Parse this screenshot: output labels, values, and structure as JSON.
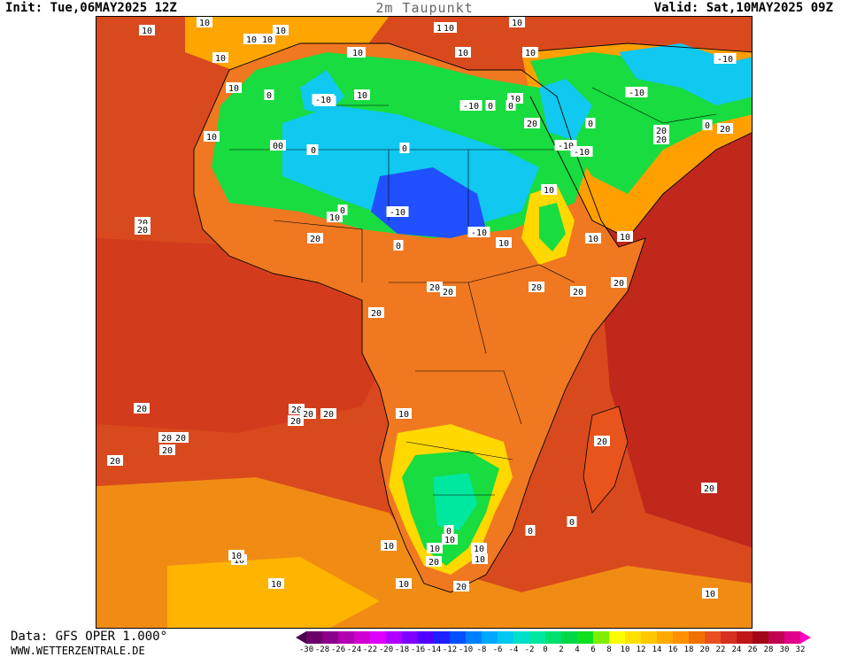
{
  "header": {
    "init": "Init: Tue,06MAY2025 12Z",
    "title": "2m Taupunkt",
    "valid": "Valid: Sat,10MAY2025 09Z"
  },
  "footer": {
    "data_source": "Data: GFS OPER 1.000°",
    "website": "WWW.WETTERZENTRALE.DE"
  },
  "legend": {
    "ticks": [
      "-30",
      "-28",
      "-26",
      "-24",
      "-22",
      "-20",
      "-18",
      "-16",
      "-14",
      "-12",
      "-10",
      "-8",
      "-6",
      "-4",
      "-2",
      "0",
      "2",
      "4",
      "6",
      "8",
      "10",
      "12",
      "14",
      "16",
      "18",
      "20",
      "22",
      "24",
      "26",
      "28",
      "30",
      "32"
    ],
    "colors": [
      "#4a004a",
      "#6b006b",
      "#8b008b",
      "#b000b0",
      "#d000d0",
      "#e000ff",
      "#b000ff",
      "#8000ff",
      "#5000ff",
      "#2020ff",
      "#0050ff",
      "#0080ff",
      "#00a8ff",
      "#00c8f0",
      "#00e0c8",
      "#00e8a0",
      "#00e070",
      "#00d848",
      "#10e020",
      "#80ee00",
      "#ffff00",
      "#ffe000",
      "#ffc800",
      "#ffaa00",
      "#ff9000",
      "#f07000",
      "#e85020",
      "#d83020",
      "#c01818",
      "#a00818",
      "#c00050",
      "#e0008a",
      "#ff00c0"
    ]
  },
  "map": {
    "type": "dewpoint-contour-map",
    "ocean_color": "#d84a1e",
    "land_colors": {
      "sahara_dry": "#10c8f0",
      "very_dry": "#2050ff",
      "green": "#18dc40",
      "orange": "#ffa000",
      "yellow": "#ffd800"
    },
    "contour_labels": [
      {
        "t": "10"
      },
      {
        "t": "10"
      },
      {
        "t": "10"
      },
      {
        "t": "10"
      },
      {
        "t": "10"
      },
      {
        "t": "10"
      },
      {
        "t": "10"
      },
      {
        "t": "10"
      },
      {
        "t": "10"
      },
      {
        "t": "10"
      },
      {
        "t": "10"
      },
      {
        "t": "0"
      },
      {
        "t": "10"
      },
      {
        "t": "10"
      },
      {
        "t": "0"
      },
      {
        "t": "-10"
      },
      {
        "t": "10"
      },
      {
        "t": "10"
      },
      {
        "t": "-10"
      },
      {
        "t": "0"
      },
      {
        "t": "00"
      },
      {
        "t": "0"
      },
      {
        "t": "10"
      },
      {
        "t": "0"
      },
      {
        "t": "-10"
      },
      {
        "t": "-10"
      },
      {
        "t": "0"
      },
      {
        "t": "10"
      },
      {
        "t": "-10"
      },
      {
        "t": "-10"
      },
      {
        "t": "20"
      },
      {
        "t": "20"
      },
      {
        "t": "20"
      },
      {
        "t": "20"
      },
      {
        "t": "0"
      },
      {
        "t": "-10"
      },
      {
        "t": "-10"
      },
      {
        "t": "-10"
      },
      {
        "t": "10"
      },
      {
        "t": "0"
      },
      {
        "t": "10"
      },
      {
        "t": "20"
      },
      {
        "t": "20"
      },
      {
        "t": "20"
      },
      {
        "t": "20"
      },
      {
        "t": "20"
      },
      {
        "t": "0"
      },
      {
        "t": "10"
      },
      {
        "t": "10"
      },
      {
        "t": "10"
      },
      {
        "t": "20"
      },
      {
        "t": "20"
      },
      {
        "t": "20"
      },
      {
        "t": "20"
      },
      {
        "t": "20"
      },
      {
        "t": "20"
      },
      {
        "t": "20"
      },
      {
        "t": "10"
      },
      {
        "t": "20"
      },
      {
        "t": "20"
      },
      {
        "t": "20"
      },
      {
        "t": "20"
      },
      {
        "t": "20"
      },
      {
        "t": "20"
      },
      {
        "t": "20"
      },
      {
        "t": "0"
      },
      {
        "t": "0"
      },
      {
        "t": "0"
      },
      {
        "t": "10"
      },
      {
        "t": "10"
      },
      {
        "t": "10"
      },
      {
        "t": "10"
      },
      {
        "t": "10"
      },
      {
        "t": "10"
      },
      {
        "t": "10"
      },
      {
        "t": "20"
      },
      {
        "t": "10"
      },
      {
        "t": "0"
      },
      {
        "t": "20"
      },
      {
        "t": "10"
      },
      {
        "t": "10"
      },
      {
        "t": "20"
      },
      {
        "t": "20"
      }
    ]
  }
}
